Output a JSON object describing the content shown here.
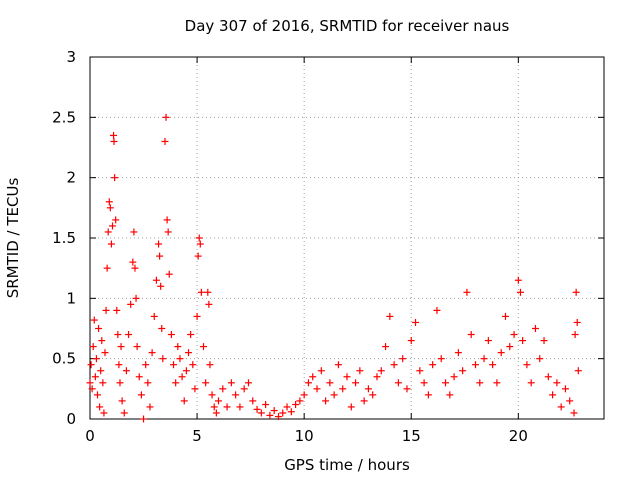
{
  "chart_data": {
    "type": "scatter",
    "title": "Day 307 of 2016, SRMTID for receiver naus",
    "xlabel": "GPS time / hours",
    "ylabel": "SRMTID / TECUs",
    "xlim": [
      0,
      24
    ],
    "ylim": [
      0,
      3
    ],
    "xticks": [
      0,
      5,
      10,
      15,
      20
    ],
    "xtick_labels": [
      "0",
      "5",
      "10",
      "15",
      "20"
    ],
    "yticks": [
      0,
      0.5,
      1,
      1.5,
      2,
      2.5,
      3
    ],
    "ytick_labels": [
      "0",
      "0.5",
      "1",
      "1.5",
      "2",
      "2.5",
      "3"
    ],
    "grid": true,
    "marker": "+",
    "marker_color": "#ff0000",
    "series": [
      {
        "name": "SRMTID",
        "points": [
          [
            0.0,
            0.3
          ],
          [
            0.05,
            0.45
          ],
          [
            0.1,
            0.25
          ],
          [
            0.15,
            0.6
          ],
          [
            0.2,
            0.82
          ],
          [
            0.25,
            0.35
          ],
          [
            0.3,
            0.5
          ],
          [
            0.35,
            0.2
          ],
          [
            0.4,
            0.75
          ],
          [
            0.45,
            0.1
          ],
          [
            0.5,
            0.4
          ],
          [
            0.55,
            0.65
          ],
          [
            0.6,
            0.3
          ],
          [
            0.65,
            0.05
          ],
          [
            0.7,
            0.55
          ],
          [
            0.75,
            0.9
          ],
          [
            0.8,
            1.25
          ],
          [
            0.85,
            1.55
          ],
          [
            0.9,
            1.8
          ],
          [
            0.95,
            1.75
          ],
          [
            1.0,
            1.45
          ],
          [
            1.05,
            1.6
          ],
          [
            1.1,
            2.35
          ],
          [
            1.12,
            2.3
          ],
          [
            1.15,
            2.0
          ],
          [
            1.2,
            1.65
          ],
          [
            1.25,
            0.9
          ],
          [
            1.3,
            0.7
          ],
          [
            1.35,
            0.45
          ],
          [
            1.4,
            0.3
          ],
          [
            1.45,
            0.6
          ],
          [
            1.5,
            0.15
          ],
          [
            1.6,
            0.05
          ],
          [
            1.7,
            0.4
          ],
          [
            1.8,
            0.7
          ],
          [
            1.9,
            0.95
          ],
          [
            2.0,
            1.3
          ],
          [
            2.05,
            1.55
          ],
          [
            2.1,
            1.25
          ],
          [
            2.15,
            1.0
          ],
          [
            2.2,
            0.6
          ],
          [
            2.3,
            0.35
          ],
          [
            2.4,
            0.2
          ],
          [
            2.5,
            0.0
          ],
          [
            2.6,
            0.45
          ],
          [
            2.7,
            0.3
          ],
          [
            2.8,
            0.1
          ],
          [
            2.9,
            0.55
          ],
          [
            3.0,
            0.85
          ],
          [
            3.1,
            1.15
          ],
          [
            3.2,
            1.45
          ],
          [
            3.25,
            1.35
          ],
          [
            3.3,
            1.1
          ],
          [
            3.35,
            0.75
          ],
          [
            3.4,
            0.5
          ],
          [
            3.5,
            2.3
          ],
          [
            3.55,
            2.5
          ],
          [
            3.6,
            1.65
          ],
          [
            3.65,
            1.55
          ],
          [
            3.7,
            1.2
          ],
          [
            3.8,
            0.7
          ],
          [
            3.9,
            0.45
          ],
          [
            4.0,
            0.3
          ],
          [
            4.1,
            0.6
          ],
          [
            4.2,
            0.5
          ],
          [
            4.3,
            0.35
          ],
          [
            4.4,
            0.15
          ],
          [
            4.5,
            0.4
          ],
          [
            4.6,
            0.55
          ],
          [
            4.7,
            0.7
          ],
          [
            4.8,
            0.45
          ],
          [
            4.9,
            0.25
          ],
          [
            5.0,
            0.85
          ],
          [
            5.05,
            1.35
          ],
          [
            5.1,
            1.5
          ],
          [
            5.15,
            1.45
          ],
          [
            5.2,
            1.05
          ],
          [
            5.3,
            0.6
          ],
          [
            5.4,
            0.3
          ],
          [
            5.5,
            1.05
          ],
          [
            5.55,
            0.95
          ],
          [
            5.6,
            0.45
          ],
          [
            5.7,
            0.2
          ],
          [
            5.8,
            0.1
          ],
          [
            5.9,
            0.05
          ],
          [
            6.0,
            0.15
          ],
          [
            6.2,
            0.25
          ],
          [
            6.4,
            0.1
          ],
          [
            6.6,
            0.3
          ],
          [
            6.8,
            0.2
          ],
          [
            7.0,
            0.1
          ],
          [
            7.2,
            0.25
          ],
          [
            7.4,
            0.3
          ],
          [
            7.6,
            0.15
          ],
          [
            7.8,
            0.08
          ],
          [
            8.0,
            0.05
          ],
          [
            8.2,
            0.12
          ],
          [
            8.4,
            0.03
          ],
          [
            8.6,
            0.07
          ],
          [
            8.8,
            0.02
          ],
          [
            9.0,
            0.05
          ],
          [
            9.2,
            0.1
          ],
          [
            9.4,
            0.06
          ],
          [
            9.6,
            0.12
          ],
          [
            9.8,
            0.15
          ],
          [
            10.0,
            0.2
          ],
          [
            10.2,
            0.3
          ],
          [
            10.4,
            0.35
          ],
          [
            10.6,
            0.25
          ],
          [
            10.8,
            0.4
          ],
          [
            11.0,
            0.15
          ],
          [
            11.2,
            0.3
          ],
          [
            11.4,
            0.2
          ],
          [
            11.6,
            0.45
          ],
          [
            11.8,
            0.25
          ],
          [
            12.0,
            0.35
          ],
          [
            12.2,
            0.1
          ],
          [
            12.4,
            0.3
          ],
          [
            12.6,
            0.4
          ],
          [
            12.8,
            0.15
          ],
          [
            13.0,
            0.25
          ],
          [
            13.2,
            0.2
          ],
          [
            13.4,
            0.35
          ],
          [
            13.6,
            0.4
          ],
          [
            13.8,
            0.6
          ],
          [
            14.0,
            0.85
          ],
          [
            14.2,
            0.45
          ],
          [
            14.4,
            0.3
          ],
          [
            14.6,
            0.5
          ],
          [
            14.8,
            0.25
          ],
          [
            15.0,
            0.65
          ],
          [
            15.2,
            0.8
          ],
          [
            15.4,
            0.4
          ],
          [
            15.6,
            0.3
          ],
          [
            15.8,
            0.2
          ],
          [
            16.0,
            0.45
          ],
          [
            16.2,
            0.9
          ],
          [
            16.4,
            0.5
          ],
          [
            16.6,
            0.3
          ],
          [
            16.8,
            0.2
          ],
          [
            17.0,
            0.35
          ],
          [
            17.2,
            0.55
          ],
          [
            17.4,
            0.4
          ],
          [
            17.6,
            1.05
          ],
          [
            17.8,
            0.7
          ],
          [
            18.0,
            0.45
          ],
          [
            18.2,
            0.3
          ],
          [
            18.4,
            0.5
          ],
          [
            18.6,
            0.65
          ],
          [
            18.8,
            0.45
          ],
          [
            19.0,
            0.3
          ],
          [
            19.2,
            0.55
          ],
          [
            19.4,
            0.85
          ],
          [
            19.6,
            0.6
          ],
          [
            19.8,
            0.7
          ],
          [
            20.0,
            1.15
          ],
          [
            20.1,
            1.05
          ],
          [
            20.2,
            0.65
          ],
          [
            20.4,
            0.45
          ],
          [
            20.6,
            0.3
          ],
          [
            20.8,
            0.75
          ],
          [
            21.0,
            0.5
          ],
          [
            21.2,
            0.65
          ],
          [
            21.4,
            0.35
          ],
          [
            21.6,
            0.2
          ],
          [
            21.8,
            0.3
          ],
          [
            22.0,
            0.1
          ],
          [
            22.2,
            0.25
          ],
          [
            22.4,
            0.15
          ],
          [
            22.6,
            0.05
          ],
          [
            22.65,
            0.7
          ],
          [
            22.7,
            1.05
          ],
          [
            22.75,
            0.8
          ],
          [
            22.8,
            0.4
          ]
        ]
      }
    ]
  }
}
